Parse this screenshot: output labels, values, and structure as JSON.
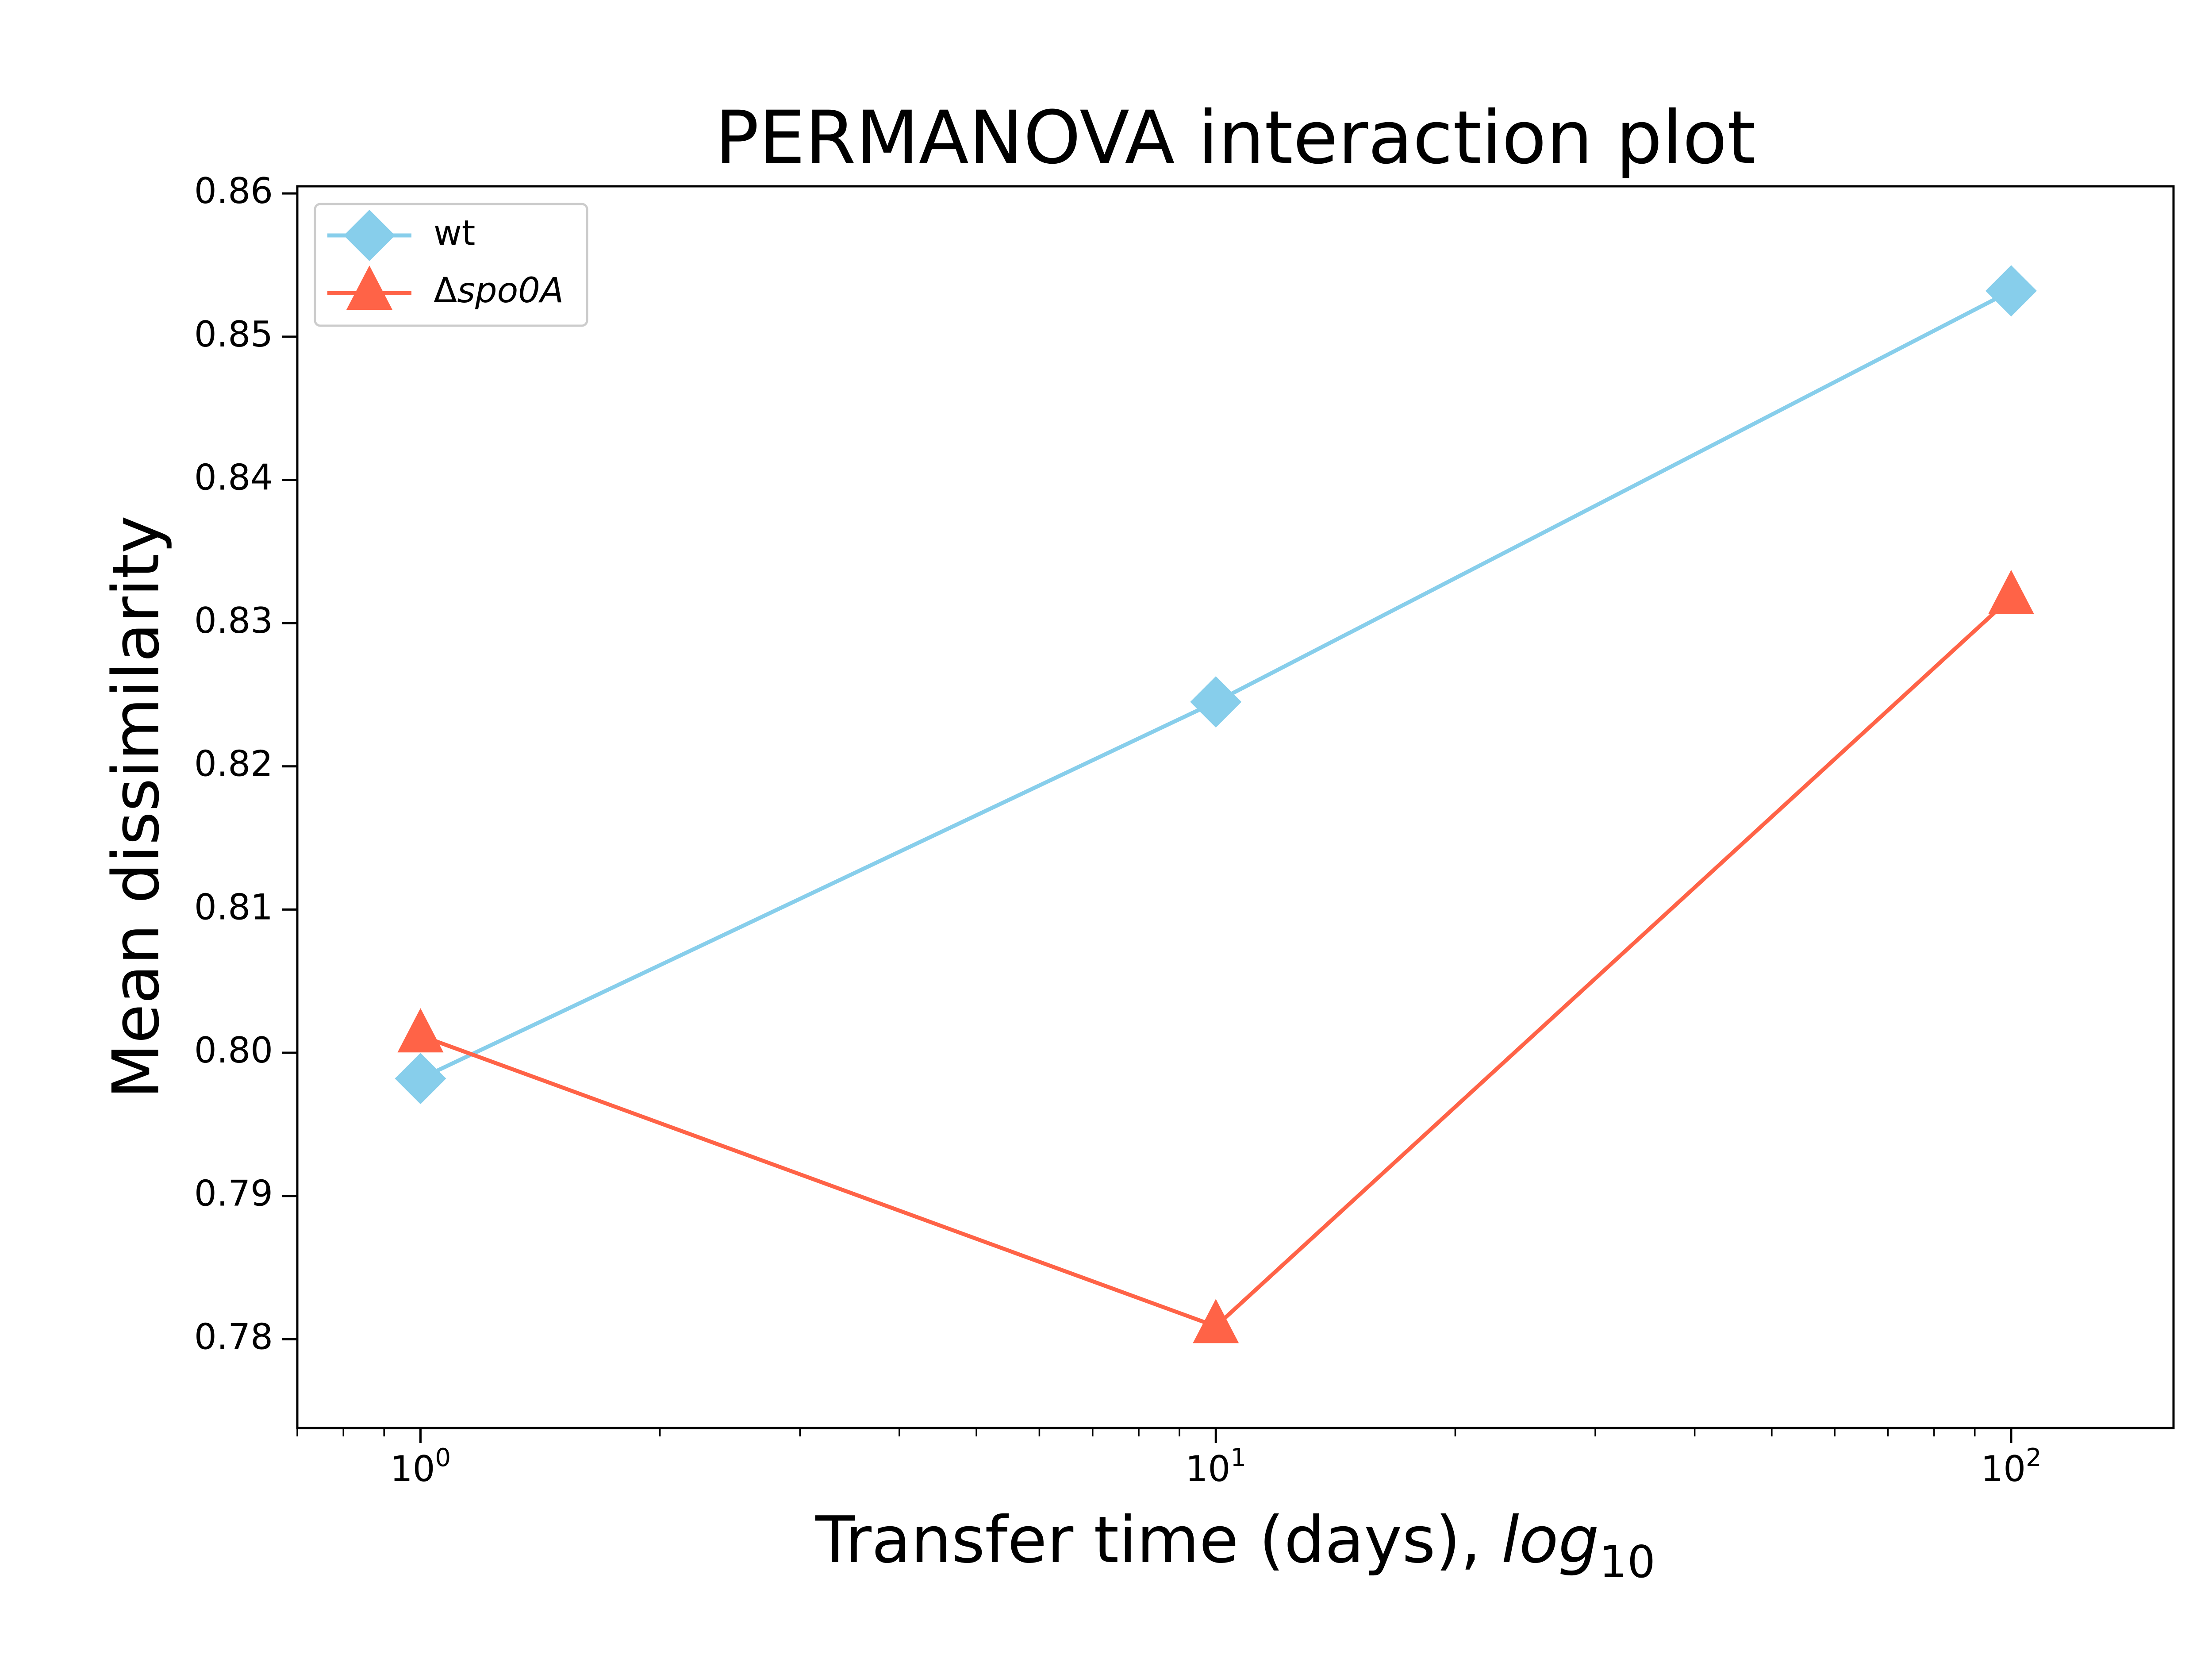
{
  "chart_data": {
    "type": "line",
    "title": "PERMANOVA interaction plot",
    "xlabel": {
      "text": "Transfer time (days), ",
      "math_base": "log",
      "math_subscript": "10"
    },
    "ylabel": "Mean dissimilarity",
    "x_scale": "log",
    "xlim": [
      0.7,
      160.0
    ],
    "ylim": [
      0.7738,
      0.8605
    ],
    "x_ticks": [
      {
        "value": 1,
        "base": "10",
        "exp": "0"
      },
      {
        "value": 10,
        "base": "10",
        "exp": "1"
      },
      {
        "value": 100,
        "base": "10",
        "exp": "2"
      }
    ],
    "y_ticks": [
      {
        "value": 0.78,
        "label": "0.78"
      },
      {
        "value": 0.79,
        "label": "0.79"
      },
      {
        "value": 0.8,
        "label": "0.80"
      },
      {
        "value": 0.81,
        "label": "0.81"
      },
      {
        "value": 0.82,
        "label": "0.82"
      },
      {
        "value": 0.83,
        "label": "0.83"
      },
      {
        "value": 0.84,
        "label": "0.84"
      },
      {
        "value": 0.85,
        "label": "0.85"
      },
      {
        "value": 0.86,
        "label": "0.86"
      }
    ],
    "grid": false,
    "legend_position": "upper-left",
    "series": [
      {
        "name": "wt",
        "legend_prefix": "",
        "legend_italic": "wt",
        "italic": false,
        "marker": "diamond",
        "color": "#87CEEB",
        "x": [
          1,
          10,
          100
        ],
        "y": [
          0.7982,
          0.8245,
          0.8532
        ]
      },
      {
        "name": "Δspo0A",
        "legend_prefix": "Δ",
        "legend_italic": "spo0A",
        "italic": true,
        "marker": "triangle",
        "color": "#FF6347",
        "x": [
          1,
          10,
          100
        ],
        "y": [
          0.8012,
          0.7809,
          0.8318
        ]
      }
    ]
  }
}
